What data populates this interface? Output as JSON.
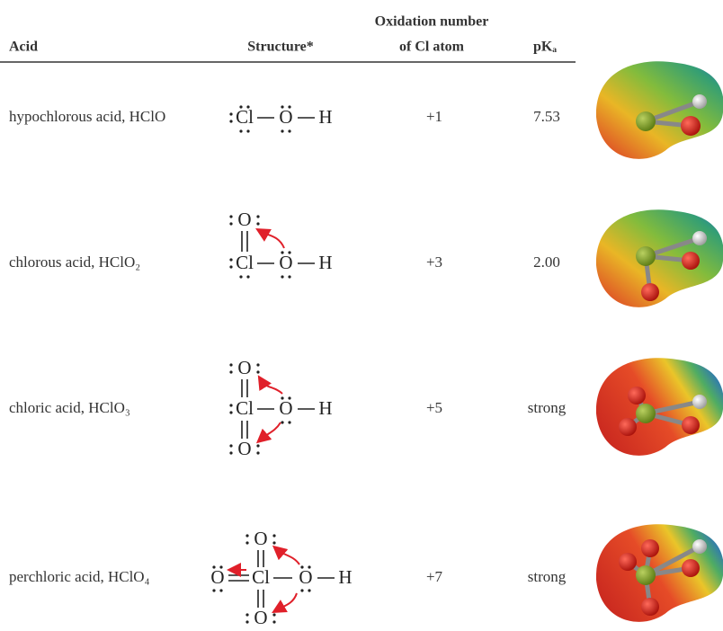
{
  "header": {
    "acid": "Acid",
    "structure": "Structure*",
    "oxidation": [
      "Oxidation number",
      "of Cl atom"
    ],
    "pka": "pKₐ"
  },
  "table": {
    "rows": [
      {
        "acid": "hypochlorous acid, HClO",
        "structure": [
          "Cl",
          "O",
          "H"
        ],
        "oxidation": "+1",
        "pka": "7.53"
      },
      {
        "acid": "chlorous acid, HClO₂",
        "structure": [
          "O",
          "Cl",
          "O",
          "H"
        ],
        "oxidation": "+3",
        "pka": "2.00"
      },
      {
        "acid": "chloric acid, HClO₃",
        "structure": [
          "O",
          "Cl",
          "O",
          "H",
          "O"
        ],
        "oxidation": "+5",
        "pka": "strong"
      },
      {
        "acid": "perchloric acid, HClO₄",
        "structure": [
          "O",
          "O",
          "Cl",
          "O",
          "H",
          "O"
        ],
        "oxidation": "+7",
        "pka": "strong"
      }
    ]
  }
}
